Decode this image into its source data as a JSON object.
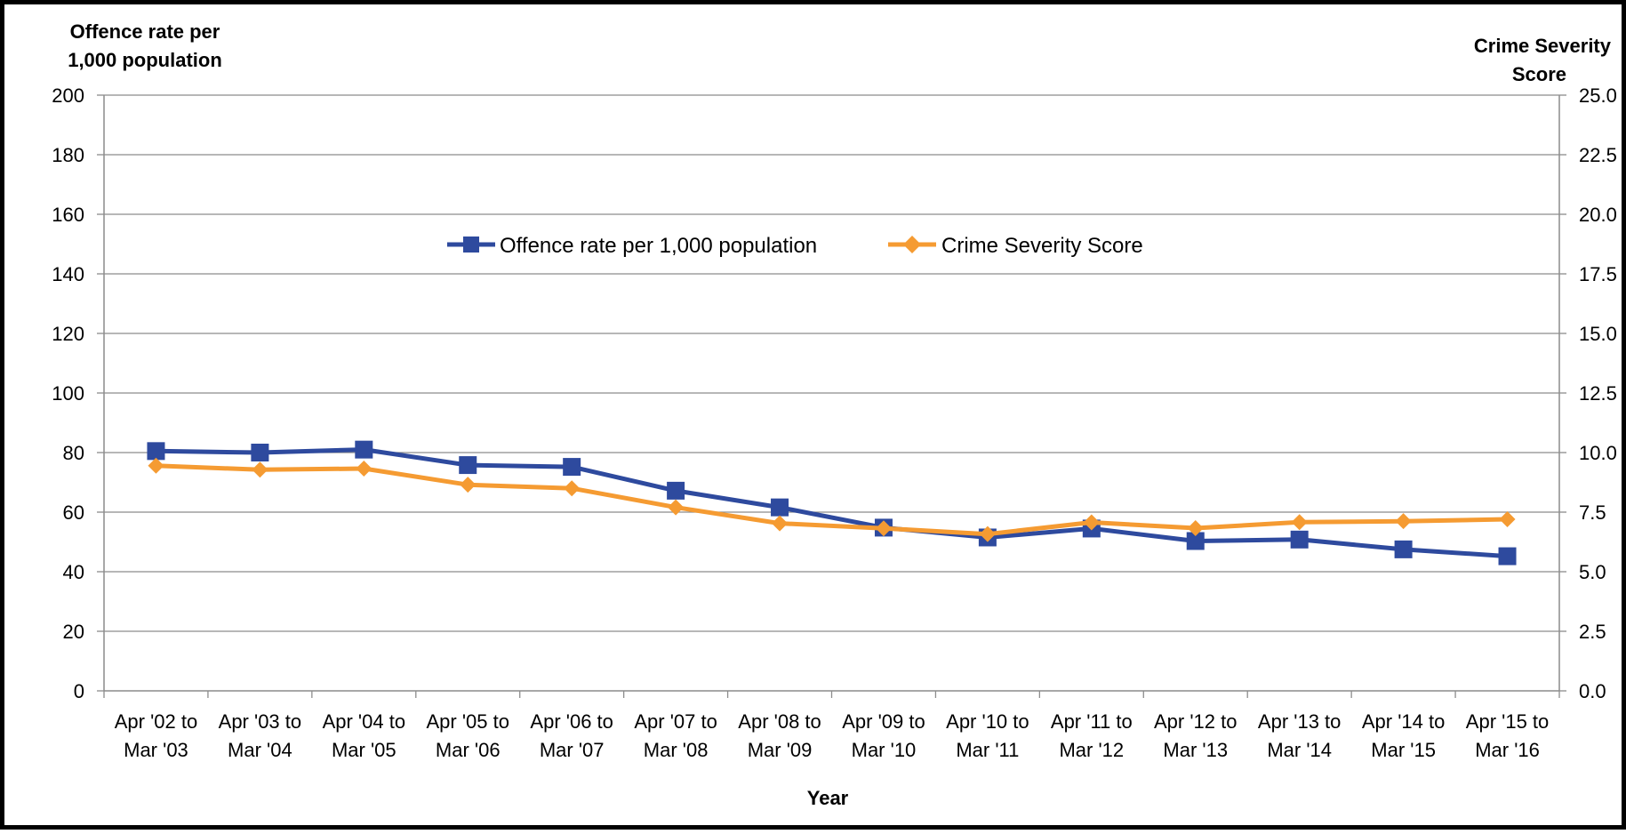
{
  "chart_data": {
    "type": "line",
    "y_title_left_lines": [
      "Offence rate per",
      "1,000 population"
    ],
    "y_title_right_lines": [
      "Crime Severity",
      "Score"
    ],
    "xlabel": "Year",
    "categories": [
      [
        "Apr '02 to",
        "Mar '03"
      ],
      [
        "Apr '03 to",
        "Mar '04"
      ],
      [
        "Apr '04 to",
        "Mar '05"
      ],
      [
        "Apr '05 to",
        "Mar '06"
      ],
      [
        "Apr '06 to",
        "Mar '07"
      ],
      [
        "Apr '07 to",
        "Mar '08"
      ],
      [
        "Apr '08 to",
        "Mar '09"
      ],
      [
        "Apr '09 to",
        "Mar '10"
      ],
      [
        "Apr '10 to",
        "Mar '11"
      ],
      [
        "Apr '11 to",
        "Mar '12"
      ],
      [
        "Apr '12 to",
        "Mar '13"
      ],
      [
        "Apr '13 to",
        "Mar '14"
      ],
      [
        "Apr '14 to",
        "Mar '15"
      ],
      [
        "Apr '15 to",
        "Mar '16"
      ]
    ],
    "y_left": {
      "min": 0,
      "max": 200,
      "step": 20,
      "ticks": [
        "0",
        "20",
        "40",
        "60",
        "80",
        "100",
        "120",
        "140",
        "160",
        "180",
        "200"
      ]
    },
    "y_right": {
      "min": 0,
      "max": 25,
      "step": 2.5,
      "ticks": [
        "0.0",
        "2.5",
        "5.0",
        "7.5",
        "10.0",
        "12.5",
        "15.0",
        "17.5",
        "20.0",
        "22.5",
        "25.0"
      ]
    },
    "grid": true,
    "legend_position": "top-center",
    "series": [
      {
        "name": "Offence rate per 1,000 population",
        "axis": "left",
        "color": "#2E4A9E",
        "marker": "square",
        "values": [
          80.5,
          80.0,
          81.0,
          75.8,
          75.2,
          67.2,
          61.6,
          54.8,
          51.5,
          54.5,
          50.3,
          50.8,
          47.5,
          45.2
        ]
      },
      {
        "name": "Crime Severity Score",
        "axis": "right",
        "color": "#F59B32",
        "marker": "diamond",
        "values": [
          9.45,
          9.28,
          9.33,
          8.65,
          8.5,
          7.7,
          7.03,
          6.82,
          6.58,
          7.07,
          6.83,
          7.08,
          7.12,
          7.2
        ]
      }
    ]
  }
}
